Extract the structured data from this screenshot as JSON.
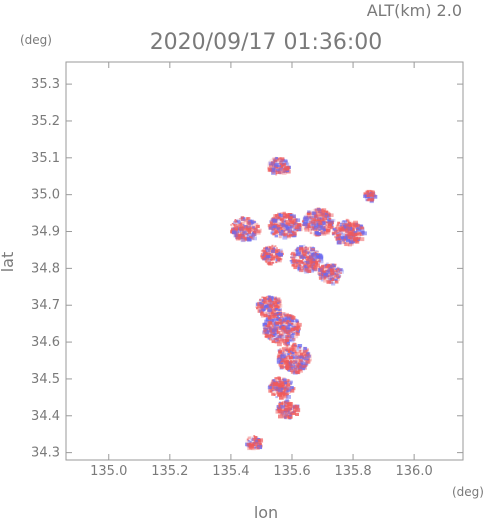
{
  "header": {
    "altitude_label": "ALT(km) 2.0",
    "timestamp": "2020/09/17 01:36:00"
  },
  "chart_data": {
    "type": "heatmap",
    "title": "2020/09/17 01:36:00",
    "xlabel": "lon",
    "ylabel": "lat",
    "x_unit": "(deg)",
    "y_unit": "(deg)",
    "xlim": [
      134.86,
      136.16
    ],
    "ylim": [
      34.28,
      35.36
    ],
    "x_ticks": [
      135.0,
      135.2,
      135.4,
      135.6,
      135.8,
      136.0
    ],
    "x_tick_labels": [
      "135.0",
      "135.2",
      "135.4",
      "135.6",
      "135.8",
      "136.0"
    ],
    "y_ticks": [
      34.3,
      34.4,
      34.5,
      34.6,
      34.7,
      34.8,
      34.9,
      35.0,
      35.1,
      35.2,
      35.3
    ],
    "y_tick_labels": [
      "34.3",
      "34.4",
      "34.5",
      "34.6",
      "34.7",
      "34.8",
      "34.9",
      "35.0",
      "35.1",
      "35.2",
      "35.3"
    ],
    "grid": true,
    "colors": {
      "positive": "#f05a5a",
      "negative": "#6a6af0",
      "axis": "#9a9a9a",
      "text": "#7a7a7a"
    },
    "regions": [
      {
        "lon": 135.55,
        "lat": 35.08,
        "r": 0.035
      },
      {
        "lon": 135.44,
        "lat": 34.91,
        "r": 0.045
      },
      {
        "lon": 135.57,
        "lat": 34.92,
        "r": 0.05
      },
      {
        "lon": 135.68,
        "lat": 34.93,
        "r": 0.05
      },
      {
        "lon": 135.78,
        "lat": 34.9,
        "r": 0.05
      },
      {
        "lon": 135.64,
        "lat": 34.83,
        "r": 0.05
      },
      {
        "lon": 135.72,
        "lat": 34.79,
        "r": 0.04
      },
      {
        "lon": 135.53,
        "lat": 34.84,
        "r": 0.035
      },
      {
        "lon": 135.52,
        "lat": 34.7,
        "r": 0.04
      },
      {
        "lon": 135.56,
        "lat": 34.64,
        "r": 0.06
      },
      {
        "lon": 135.6,
        "lat": 34.56,
        "r": 0.055
      },
      {
        "lon": 135.56,
        "lat": 34.48,
        "r": 0.04
      },
      {
        "lon": 135.58,
        "lat": 34.42,
        "r": 0.035
      },
      {
        "lon": 135.47,
        "lat": 34.33,
        "r": 0.025
      },
      {
        "lon": 135.85,
        "lat": 35.0,
        "r": 0.02
      }
    ]
  }
}
